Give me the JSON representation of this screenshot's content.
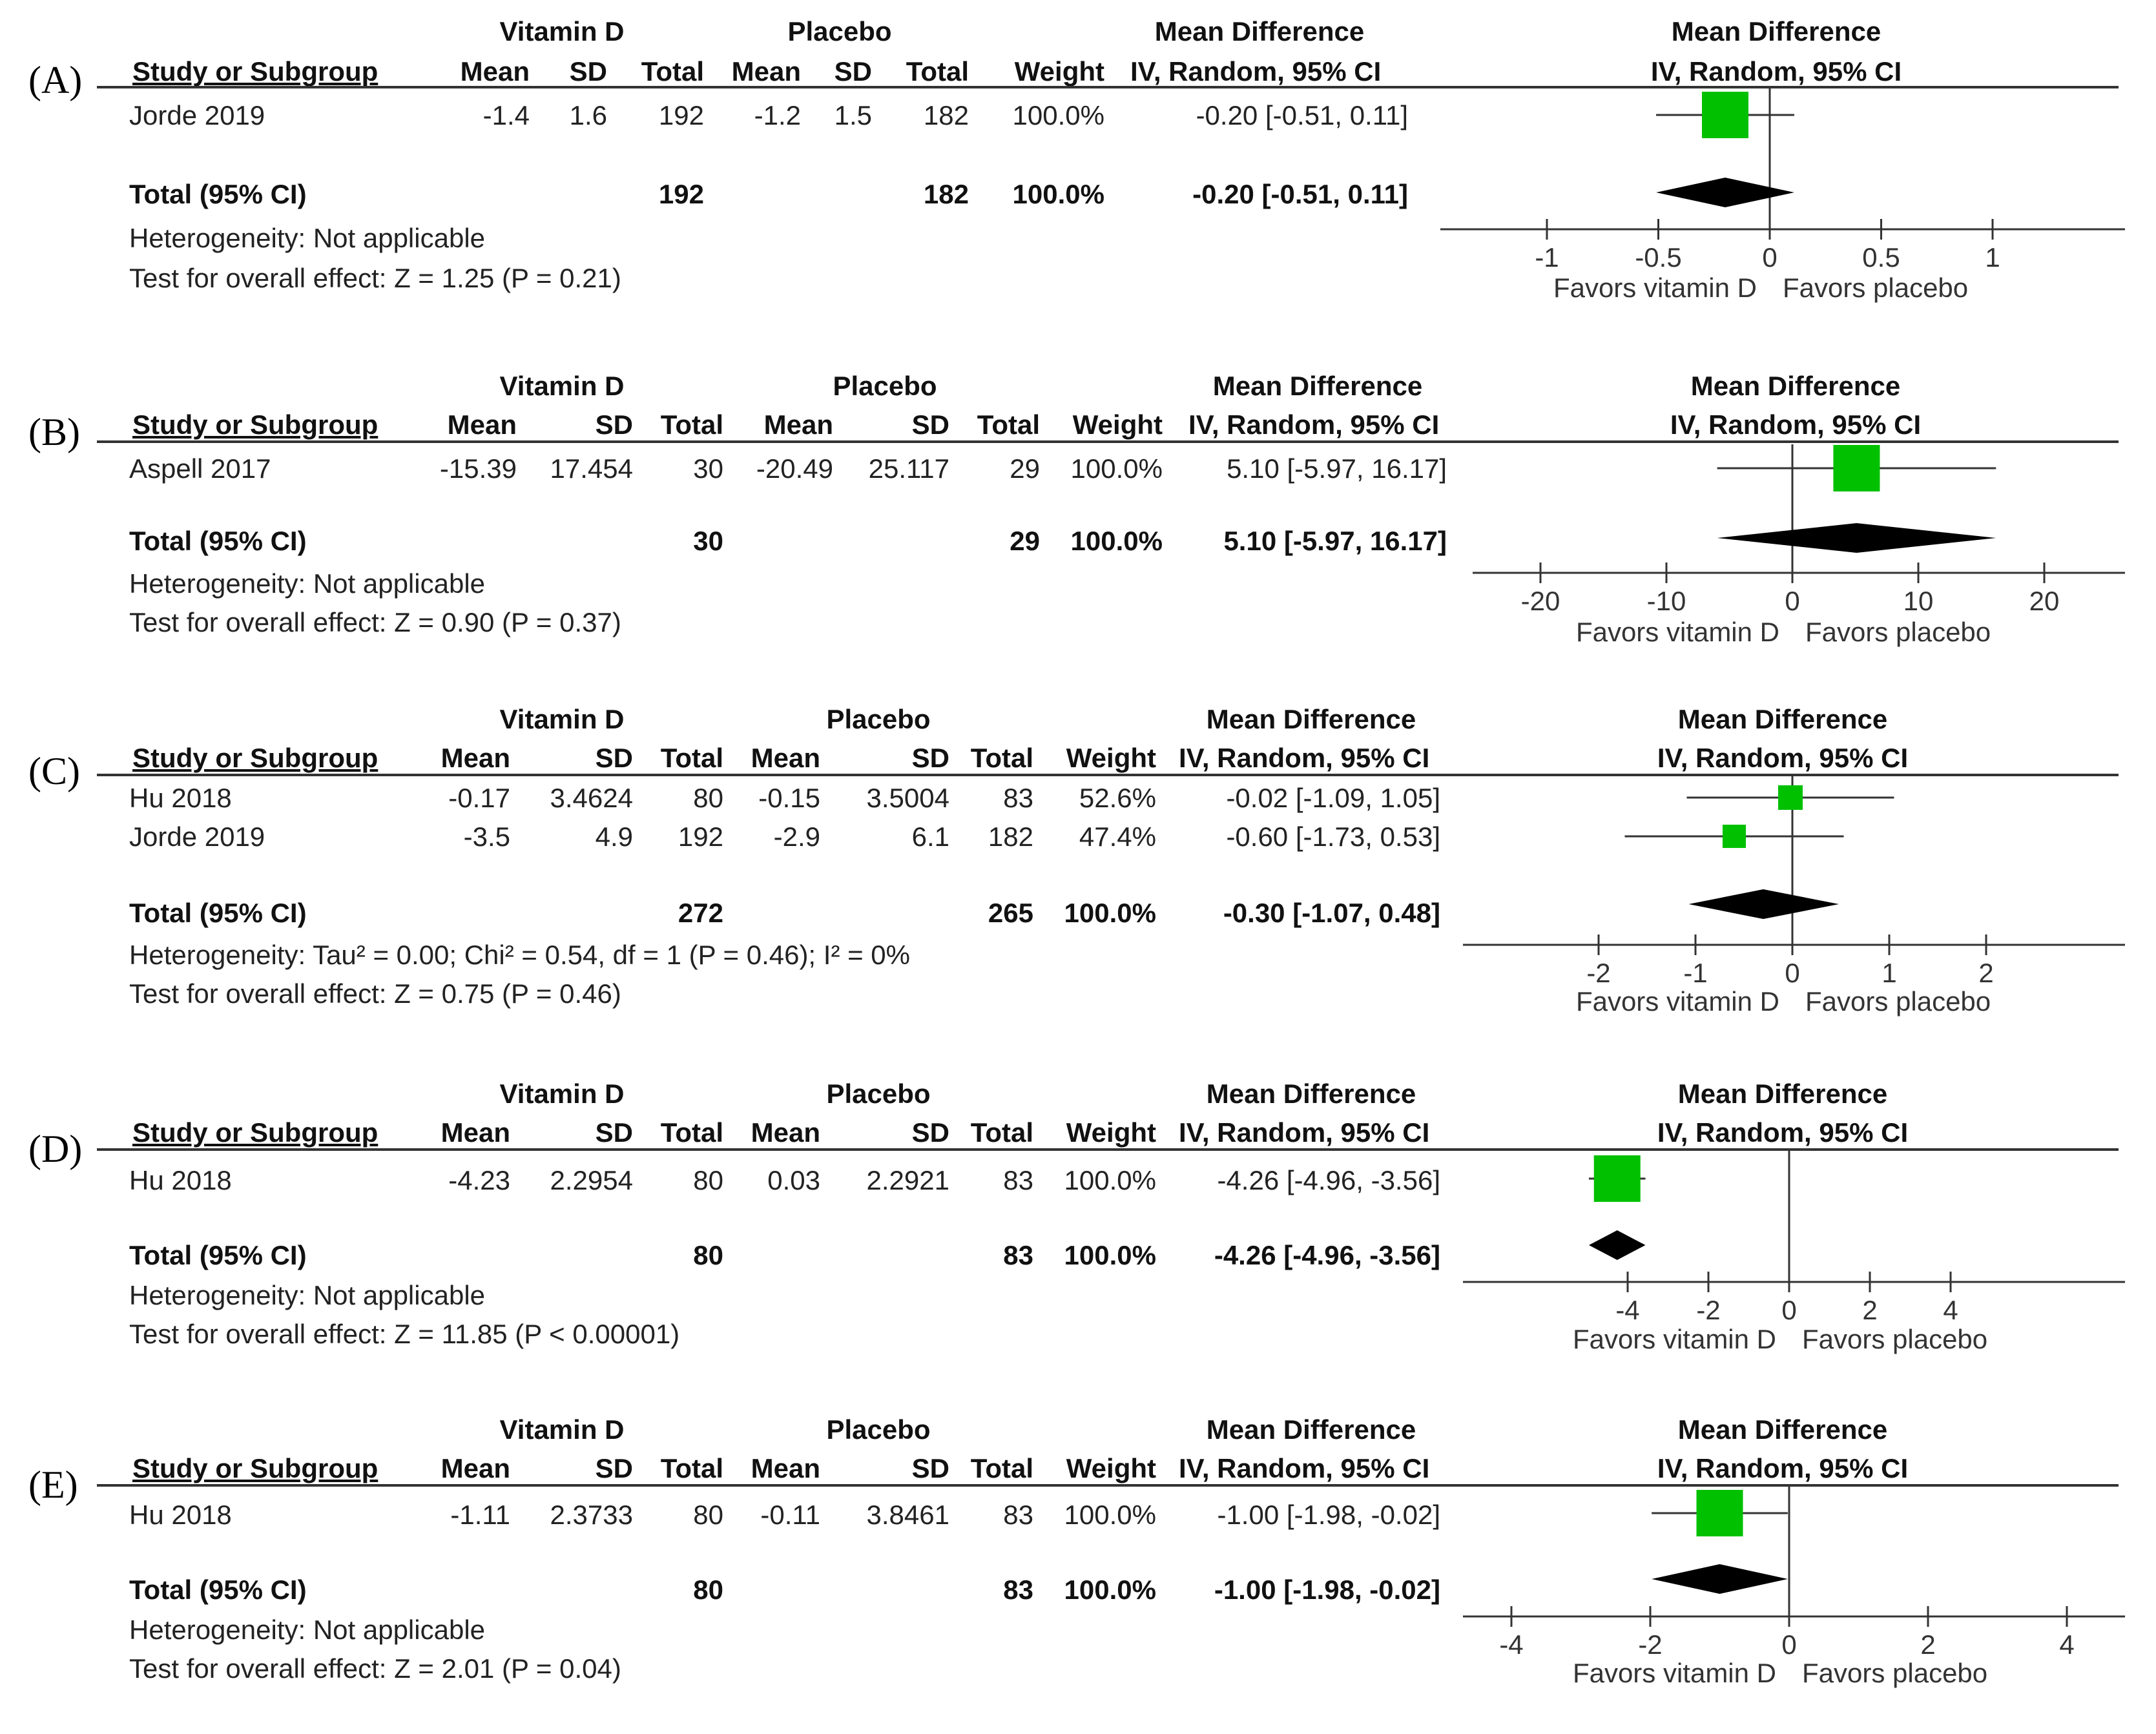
{
  "headers": {
    "study": "Study or Subgroup",
    "mean": "Mean",
    "sd": "SD",
    "total": "Total",
    "weight": "Weight",
    "group1": "Vitamin D",
    "group2": "Placebo",
    "md": "Mean Difference",
    "method": "IV, Random, 95% CI",
    "favors_left": "Favors vitamin D",
    "favors_right": "Favors placebo"
  },
  "panels": [
    {
      "label": "(A)",
      "studies": [
        {
          "name": "Jorde 2019",
          "mean1": "-1.4",
          "sd1": "1.6",
          "n1": "192",
          "mean2": "-1.2",
          "sd2": "1.5",
          "n2": "182",
          "weight": "100.0%",
          "ci": "-0.20 [-0.51, 0.11]"
        }
      ],
      "total": {
        "label": "Total (95% CI)",
        "n1": "192",
        "n2": "182",
        "weight": "100.0%",
        "ci": "-0.20 [-0.51, 0.11]"
      },
      "heterogeneity": "Heterogeneity: Not applicable",
      "overall": "Test for overall effect: Z = 1.25 (P = 0.21)"
    },
    {
      "label": "(B)",
      "studies": [
        {
          "name": "Aspell 2017",
          "mean1": "-15.39",
          "sd1": "17.454",
          "n1": "30",
          "mean2": "-20.49",
          "sd2": "25.117",
          "n2": "29",
          "weight": "100.0%",
          "ci": "5.10 [-5.97, 16.17]"
        }
      ],
      "total": {
        "label": "Total (95% CI)",
        "n1": "30",
        "n2": "29",
        "weight": "100.0%",
        "ci": "5.10 [-5.97, 16.17]"
      },
      "heterogeneity": "Heterogeneity: Not applicable",
      "overall": "Test for overall effect: Z = 0.90 (P = 0.37)"
    },
    {
      "label": "(C)",
      "studies": [
        {
          "name": "Hu 2018",
          "mean1": "-0.17",
          "sd1": "3.4624",
          "n1": "80",
          "mean2": "-0.15",
          "sd2": "3.5004",
          "n2": "83",
          "weight": "52.6%",
          "ci": "-0.02 [-1.09, 1.05]"
        },
        {
          "name": "Jorde 2019",
          "mean1": "-3.5",
          "sd1": "4.9",
          "n1": "192",
          "mean2": "-2.9",
          "sd2": "6.1",
          "n2": "182",
          "weight": "47.4%",
          "ci": "-0.60 [-1.73, 0.53]"
        }
      ],
      "total": {
        "label": "Total (95% CI)",
        "n1": "272",
        "n2": "265",
        "weight": "100.0%",
        "ci": "-0.30 [-1.07, 0.48]"
      },
      "heterogeneity": "Heterogeneity: Tau² = 0.00; Chi² = 0.54, df = 1 (P = 0.46); I² = 0%",
      "overall": "Test for overall effect: Z = 0.75 (P = 0.46)"
    },
    {
      "label": "(D)",
      "studies": [
        {
          "name": "Hu 2018",
          "mean1": "-4.23",
          "sd1": "2.2954",
          "n1": "80",
          "mean2": "0.03",
          "sd2": "2.2921",
          "n2": "83",
          "weight": "100.0%",
          "ci": "-4.26 [-4.96, -3.56]"
        }
      ],
      "total": {
        "label": "Total (95% CI)",
        "n1": "80",
        "n2": "83",
        "weight": "100.0%",
        "ci": "-4.26 [-4.96, -3.56]"
      },
      "heterogeneity": "Heterogeneity: Not applicable",
      "overall": "Test for overall effect: Z = 11.85 (P < 0.00001)"
    },
    {
      "label": "(E)",
      "studies": [
        {
          "name": "Hu 2018",
          "mean1": "-1.11",
          "sd1": "2.3733",
          "n1": "80",
          "mean2": "-0.11",
          "sd2": "3.8461",
          "n2": "83",
          "weight": "100.0%",
          "ci": "-1.00 [-1.98, -0.02]"
        }
      ],
      "total": {
        "label": "Total (95% CI)",
        "n1": "80",
        "n2": "83",
        "weight": "100.0%",
        "ci": "-1.00 [-1.98, -0.02]"
      },
      "heterogeneity": "Heterogeneity: Not applicable",
      "overall": "Test for overall effect: Z = 2.01 (P = 0.04)"
    }
  ],
  "colors": {
    "study_marker": "#00c000",
    "diamond": "#000000",
    "axis": "#333333"
  },
  "chart_data": [
    {
      "type": "scatter",
      "title": "(A)",
      "xlim": [
        -1,
        1
      ],
      "xticks": [
        "-1",
        "-0.5",
        "0",
        "0.5",
        "1"
      ],
      "tick_values": [
        -1,
        -0.5,
        0,
        0.5,
        1
      ],
      "xlabel_left": "Favors vitamin D",
      "xlabel_right": "Favors placebo",
      "studies": [
        {
          "name": "Jorde 2019",
          "md": -0.2,
          "lower": -0.51,
          "upper": 0.11,
          "weight": 100.0
        }
      ],
      "pooled": {
        "md": -0.2,
        "lower": -0.51,
        "upper": 0.11
      }
    },
    {
      "type": "scatter",
      "title": "(B)",
      "xlim": [
        -20,
        20
      ],
      "xticks": [
        "-20",
        "-10",
        "0",
        "10",
        "20"
      ],
      "tick_values": [
        -20,
        -10,
        0,
        10,
        20
      ],
      "xlabel_left": "Favors vitamin D",
      "xlabel_right": "Favors placebo",
      "studies": [
        {
          "name": "Aspell 2017",
          "md": 5.1,
          "lower": -5.97,
          "upper": 16.17,
          "weight": 100.0
        }
      ],
      "pooled": {
        "md": 5.1,
        "lower": -5.97,
        "upper": 16.17
      }
    },
    {
      "type": "scatter",
      "title": "(C)",
      "xlim": [
        -2,
        2
      ],
      "xticks": [
        "-2",
        "-1",
        "0",
        "1",
        "2"
      ],
      "tick_values": [
        -2,
        -1,
        0,
        1,
        2
      ],
      "xlabel_left": "Favors vitamin D",
      "xlabel_right": "Favors placebo",
      "studies": [
        {
          "name": "Hu 2018",
          "md": -0.02,
          "lower": -1.09,
          "upper": 1.05,
          "weight": 52.6
        },
        {
          "name": "Jorde 2019",
          "md": -0.6,
          "lower": -1.73,
          "upper": 0.53,
          "weight": 47.4
        }
      ],
      "pooled": {
        "md": -0.3,
        "lower": -1.07,
        "upper": 0.48
      }
    },
    {
      "type": "scatter",
      "title": "(D)",
      "xlim": [
        -4,
        4
      ],
      "xticks": [
        "-4",
        "-2",
        "0",
        "2",
        "4"
      ],
      "tick_values": [
        -4,
        -2,
        0,
        2,
        4
      ],
      "xlabel_left": "Favors vitamin D",
      "xlabel_right": "Favors placebo",
      "studies": [
        {
          "name": "Hu 2018",
          "md": -4.26,
          "lower": -4.96,
          "upper": -3.56,
          "weight": 100.0
        }
      ],
      "pooled": {
        "md": -4.26,
        "lower": -4.96,
        "upper": -3.56
      }
    },
    {
      "type": "scatter",
      "title": "(E)",
      "xlim": [
        -4,
        4
      ],
      "xticks": [
        "-4",
        "-2",
        "0",
        "2",
        "4"
      ],
      "tick_values": [
        -4,
        -2,
        0,
        2,
        4
      ],
      "xlabel_left": "Favors vitamin D",
      "xlabel_right": "Favors placebo",
      "studies": [
        {
          "name": "Hu 2018",
          "md": -1.0,
          "lower": -1.98,
          "upper": -0.02,
          "weight": 100.0
        }
      ],
      "pooled": {
        "md": -1.0,
        "lower": -1.98,
        "upper": -0.02
      }
    }
  ]
}
